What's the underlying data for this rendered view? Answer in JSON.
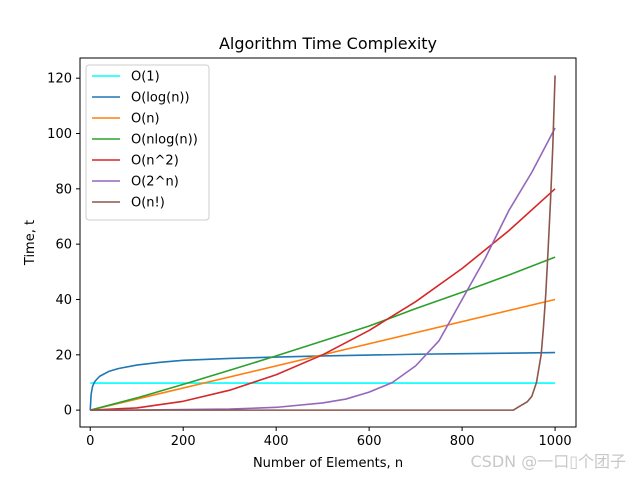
{
  "chart_data": {
    "type": "line",
    "title": "Algorithm Time Complexity",
    "xlabel": "Number of Elements, n",
    "ylabel": "Time, t",
    "xlim": [
      -22,
      1045
    ],
    "ylim": [
      -6.1,
      127.3
    ],
    "xticks": [
      0,
      200,
      400,
      600,
      800,
      1000
    ],
    "yticks": [
      0,
      20,
      40,
      60,
      80,
      100,
      120
    ],
    "grid": false,
    "legend_position": "upper left",
    "series": [
      {
        "name": "O(1)",
        "color": "#00ffff",
        "x": [
          0,
          1000
        ],
        "y": [
          9.8,
          9.8
        ]
      },
      {
        "name": "O(log(n))",
        "color": "#1f77b4",
        "x": [
          0,
          2,
          5,
          10,
          20,
          40,
          60,
          100,
          150,
          200,
          300,
          400,
          500,
          600,
          700,
          800,
          900,
          1000
        ],
        "y": [
          0,
          5.8,
          8.6,
          10.4,
          12.2,
          14.0,
          15.0,
          16.3,
          17.3,
          18.0,
          18.7,
          19.2,
          19.6,
          19.9,
          20.2,
          20.4,
          20.6,
          20.8
        ]
      },
      {
        "name": "O(n)",
        "color": "#ff7f0e",
        "x": [
          0,
          1000
        ],
        "y": [
          0,
          40
        ]
      },
      {
        "name": "O(nlog(n))",
        "color": "#2ca02c",
        "x": [
          0,
          100,
          200,
          300,
          400,
          500,
          600,
          700,
          800,
          900,
          1000
        ],
        "y": [
          0,
          4.4,
          9.3,
          14.4,
          19.6,
          25.0,
          30.4,
          36.7,
          42.6,
          48.8,
          55.3
        ]
      },
      {
        "name": "O(n^2)",
        "color": "#d62728",
        "x": [
          0,
          100,
          200,
          300,
          400,
          500,
          600,
          700,
          800,
          900,
          1000
        ],
        "y": [
          0,
          0.8,
          3.2,
          7.2,
          12.8,
          20.0,
          28.8,
          39.2,
          51.2,
          64.8,
          80.0
        ]
      },
      {
        "name": "O(2^n)",
        "color": "#9467bd",
        "x": [
          0,
          100,
          200,
          300,
          400,
          500,
          550,
          600,
          650,
          700,
          750,
          800,
          850,
          900,
          950,
          1000
        ],
        "y": [
          0,
          0.05,
          0.2,
          0.4,
          1.0,
          2.6,
          4.0,
          6.5,
          10.0,
          16.0,
          25.0,
          40.0,
          55.0,
          72.0,
          86.0,
          102.0
        ]
      },
      {
        "name": "O(n!)",
        "color": "#8c564b",
        "x": [
          0,
          910,
          920,
          930,
          940,
          950,
          960,
          970,
          975,
          980,
          985,
          990,
          995,
          1000
        ],
        "y": [
          0,
          0,
          1.0,
          2.0,
          3.0,
          5.0,
          10.0,
          20.0,
          30.0,
          42.0,
          58.0,
          75.0,
          95.0,
          121.0
        ]
      }
    ]
  },
  "watermark": "CSDN @一口▯个团子"
}
